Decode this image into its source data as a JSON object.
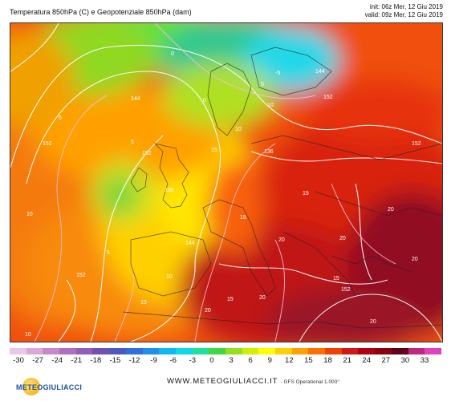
{
  "header": {
    "title": "Temperatura 850hPa (C) e Geopotenziale 850hPa (dam)",
    "init": "init: 06z Mer, 12 Giu 2019",
    "valid": "valid: 09z Mer, 12 Giu 2019"
  },
  "colorbar": {
    "labels": [
      "-30",
      "-27",
      "-24",
      "-21",
      "-18",
      "-15",
      "-12",
      "-9",
      "-6",
      "-3",
      "0",
      "3",
      "6",
      "9",
      "12",
      "15",
      "18",
      "21",
      "24",
      "27",
      "30",
      "33"
    ],
    "colors": [
      "#e8c8e8",
      "#d8a8d8",
      "#c888c8",
      "#b070c0",
      "#9060b8",
      "#7050b0",
      "#5058c0",
      "#3070d8",
      "#2090e8",
      "#10b8f0",
      "#10d8e8",
      "#20e0a0",
      "#40d840",
      "#90e020",
      "#d0f000",
      "#ffff00",
      "#ffd000",
      "#ffa000",
      "#ff7000",
      "#f04000",
      "#d01818",
      "#b00010",
      "#880010",
      "#600018",
      "#c02880",
      "#e040c0"
    ]
  },
  "map": {
    "temperature_labels": [
      "-5",
      "0",
      "0",
      "5",
      "5",
      "5",
      "5",
      "10",
      "10",
      "10",
      "10",
      "10",
      "15",
      "15",
      "15",
      "15",
      "15",
      "15",
      "20",
      "20",
      "20",
      "20",
      "20",
      "20",
      "20"
    ],
    "geopotential_labels": [
      "144",
      "144",
      "144",
      "152",
      "152",
      "152",
      "152",
      "152",
      "152",
      "136",
      "136"
    ]
  },
  "footer": {
    "site": "WWW.METEOGIULIACCI.IT",
    "model": "- GFS Operational 1.000°",
    "logo_text": "METEOGIULIACCI"
  }
}
